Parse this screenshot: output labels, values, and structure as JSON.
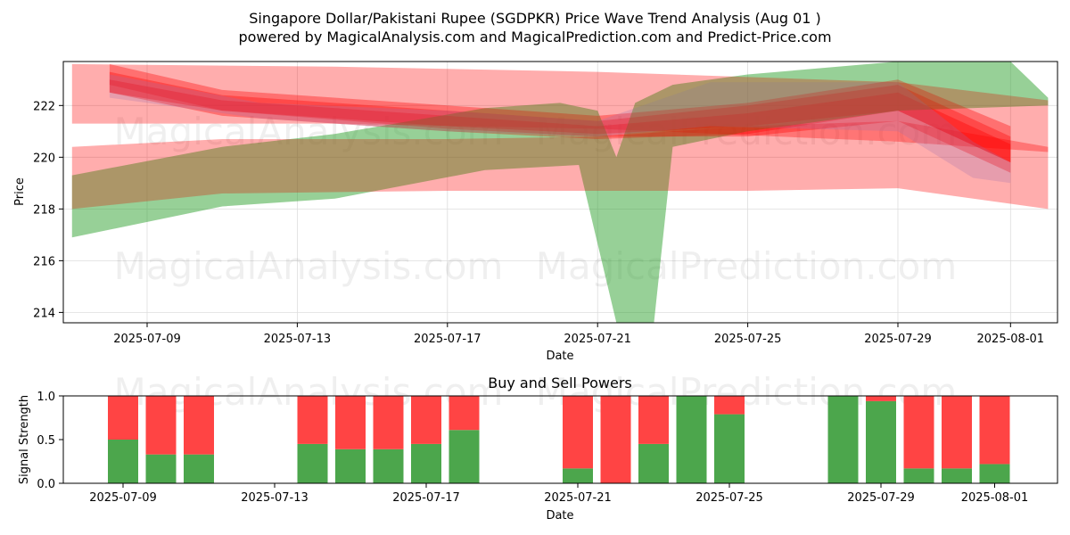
{
  "title_line1": "Singapore Dollar/Pakistani Rupee (SGDPKR) Price Wave Trend Analysis (Aug 01 )",
  "title_line2": "powered by MagicalAnalysis.com and MagicalPrediction.com and Predict-Price.com",
  "watermarks": [
    "MagicalAnalysis.com",
    "MagicalPrediction.com"
  ],
  "colors": {
    "red_band": "#ff0000",
    "green_band": "#2ca02c",
    "buy": "#4ca64c",
    "sell": "#ff4444"
  },
  "chart_data": [
    {
      "type": "area",
      "name": "price-wave-trend",
      "xlabel": "Date",
      "ylabel": "Price",
      "ylim": [
        213.6,
        223.7
      ],
      "yticks": [
        214,
        216,
        218,
        220,
        222
      ],
      "xticks": [
        "2025-07-09",
        "2025-07-13",
        "2025-07-17",
        "2025-07-21",
        "2025-07-25",
        "2025-07-29",
        "2025-08-01"
      ],
      "grid": true,
      "red_bands": [
        {
          "upper": [
            [
              "2025-07-07",
              223.6
            ],
            [
              "2025-07-14",
              223.5
            ],
            [
              "2025-07-21",
              223.3
            ],
            [
              "2025-07-29",
              222.9
            ],
            [
              "2025-08-02",
              222.2
            ]
          ],
          "lower": [
            [
              "2025-08-02",
              220.2
            ],
            [
              "2025-07-29",
              220.6
            ],
            [
              "2025-07-21",
              221.1
            ],
            [
              "2025-07-14",
              221.3
            ],
            [
              "2025-07-07",
              221.3
            ]
          ]
        },
        {
          "upper": [
            [
              "2025-07-07",
              220.4
            ],
            [
              "2025-07-11",
              220.7
            ],
            [
              "2025-07-17",
              220.7
            ],
            [
              "2025-07-21",
              220.8
            ],
            [
              "2025-07-25",
              221.2
            ],
            [
              "2025-07-29",
              221.4
            ],
            [
              "2025-08-02",
              220.4
            ]
          ],
          "lower": [
            [
              "2025-08-02",
              218.0
            ],
            [
              "2025-07-29",
              218.8
            ],
            [
              "2025-07-25",
              218.7
            ],
            [
              "2025-07-21",
              218.7
            ],
            [
              "2025-07-17",
              218.7
            ],
            [
              "2025-07-11",
              218.6
            ],
            [
              "2025-07-07",
              218.0
            ]
          ]
        },
        {
          "upper": [
            [
              "2025-07-08",
              223.6
            ],
            [
              "2025-07-11",
              222.6
            ],
            [
              "2025-07-17",
              222.0
            ],
            [
              "2025-07-21",
              221.6
            ],
            [
              "2025-07-25",
              222.1
            ],
            [
              "2025-07-29",
              223.0
            ],
            [
              "2025-08-01",
              221.2
            ]
          ],
          "lower": [
            [
              "2025-08-01",
              219.8
            ],
            [
              "2025-07-29",
              221.8
            ],
            [
              "2025-07-25",
              220.9
            ],
            [
              "2025-07-21",
              220.7
            ],
            [
              "2025-07-17",
              221.0
            ],
            [
              "2025-07-11",
              221.6
            ],
            [
              "2025-07-08",
              222.5
            ]
          ]
        },
        {
          "upper": [
            [
              "2025-07-08",
              223.3
            ],
            [
              "2025-07-11",
              222.4
            ],
            [
              "2025-07-17",
              221.8
            ],
            [
              "2025-07-21",
              221.4
            ],
            [
              "2025-07-25",
              222.0
            ],
            [
              "2025-07-29",
              222.8
            ],
            [
              "2025-08-01",
              220.8
            ]
          ],
          "lower": [
            [
              "2025-08-01",
              219.4
            ],
            [
              "2025-07-29",
              221.4
            ],
            [
              "2025-07-25",
              220.8
            ],
            [
              "2025-07-21",
              220.8
            ],
            [
              "2025-07-17",
              221.1
            ],
            [
              "2025-07-11",
              221.8
            ],
            [
              "2025-07-08",
              222.8
            ]
          ]
        },
        {
          "upper": [
            [
              "2025-07-08",
              223.0
            ],
            [
              "2025-07-11",
              222.2
            ],
            [
              "2025-07-17",
              221.6
            ],
            [
              "2025-07-21",
              221.2
            ],
            [
              "2025-07-25",
              221.7
            ],
            [
              "2025-07-29",
              222.5
            ],
            [
              "2025-08-01",
              220.5
            ]
          ],
          "lower": [
            [
              "2025-08-01",
              219.8
            ],
            [
              "2025-07-29",
              221.8
            ],
            [
              "2025-07-25",
              221.2
            ],
            [
              "2025-07-21",
              220.9
            ],
            [
              "2025-07-17",
              221.2
            ],
            [
              "2025-07-11",
              221.8
            ],
            [
              "2025-07-08",
              222.5
            ]
          ]
        }
      ],
      "purple_band": {
        "upper": [
          [
            "2025-07-08",
            223.2
          ],
          [
            "2025-07-12",
            222.1
          ],
          [
            "2025-07-17",
            221.8
          ],
          [
            "2025-07-21",
            221.4
          ],
          [
            "2025-07-24",
            222.9
          ],
          [
            "2025-07-29",
            222.9
          ],
          [
            "2025-07-31",
            220.6
          ],
          [
            "2025-08-01",
            219.8
          ]
        ],
        "lower": [
          [
            "2025-08-01",
            219.0
          ],
          [
            "2025-07-31",
            219.2
          ],
          [
            "2025-07-29",
            221.0
          ],
          [
            "2025-07-24",
            221.2
          ],
          [
            "2025-07-21",
            220.8
          ],
          [
            "2025-07-17",
            221.0
          ],
          [
            "2025-07-12",
            221.5
          ],
          [
            "2025-07-08",
            222.3
          ]
        ]
      },
      "green_band": {
        "upper": [
          [
            "2025-07-07",
            219.3
          ],
          [
            "2025-07-11",
            220.4
          ],
          [
            "2025-07-14",
            220.9
          ],
          [
            "2025-07-18",
            221.9
          ],
          [
            "2025-07-20",
            222.1
          ],
          [
            "2025-07-21",
            221.8
          ],
          [
            "2025-07-21.5",
            220.0
          ],
          [
            "2025-07-22",
            222.1
          ],
          [
            "2025-07-23",
            222.8
          ],
          [
            "2025-07-25",
            223.2
          ],
          [
            "2025-07-29",
            223.7
          ],
          [
            "2025-08-01",
            223.7
          ],
          [
            "2025-08-02",
            222.3
          ]
        ],
        "lower": [
          [
            "2025-08-02",
            222.0
          ],
          [
            "2025-07-29",
            221.8
          ],
          [
            "2025-07-25",
            221.0
          ],
          [
            "2025-07-23",
            220.4
          ],
          [
            "2025-07-22.5",
            213.6
          ],
          [
            "2025-07-21.5",
            213.6
          ],
          [
            "2025-07-20.5",
            219.7
          ],
          [
            "2025-07-18",
            219.5
          ],
          [
            "2025-07-14",
            218.4
          ],
          [
            "2025-07-11",
            218.1
          ],
          [
            "2025-07-07",
            216.9
          ]
        ]
      }
    },
    {
      "type": "bar",
      "name": "buy-and-sell-powers",
      "title": "Buy and Sell Powers",
      "xlabel": "Date",
      "ylabel": "Signal Strength",
      "ylim": [
        0,
        1
      ],
      "yticks": [
        "0.0",
        "0.5",
        "1.0"
      ],
      "xticks": [
        "2025-07-09",
        "2025-07-13",
        "2025-07-17",
        "2025-07-21",
        "2025-07-25",
        "2025-07-29",
        "2025-08-01"
      ],
      "categories": [
        "2025-07-09",
        "2025-07-10",
        "2025-07-11",
        "2025-07-14",
        "2025-07-15",
        "2025-07-16",
        "2025-07-17",
        "2025-07-18",
        "2025-07-21",
        "2025-07-22",
        "2025-07-23",
        "2025-07-24",
        "2025-07-25",
        "2025-07-28",
        "2025-07-29",
        "2025-07-30",
        "2025-07-31",
        "2025-08-01"
      ],
      "buy": [
        0.5,
        0.33,
        0.33,
        0.45,
        0.39,
        0.39,
        0.45,
        0.61,
        0.17,
        0.0,
        0.45,
        1.0,
        0.79,
        1.0,
        0.94,
        0.17,
        0.17,
        0.22
      ],
      "sell": [
        0.5,
        0.67,
        0.67,
        0.55,
        0.61,
        0.61,
        0.55,
        0.39,
        0.83,
        1.0,
        0.55,
        0.0,
        0.21,
        0.0,
        0.06,
        0.83,
        0.83,
        0.78
      ]
    }
  ]
}
